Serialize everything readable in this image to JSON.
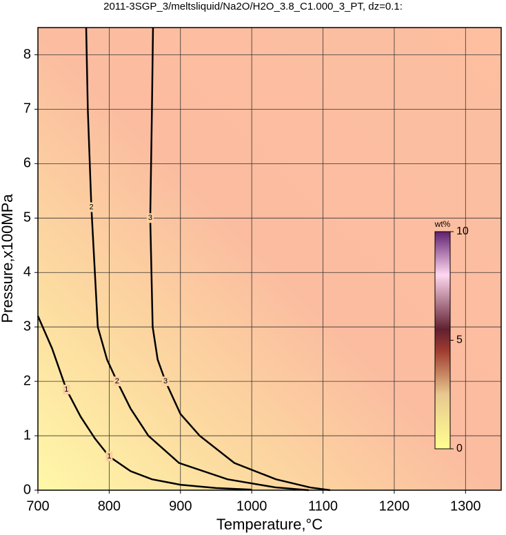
{
  "chart_data": {
    "type": "contour",
    "title": "2011-3SGP_3/meltsliquid/Na2O/H2O_3.8_C1.000_3_PT, dz=0.1:",
    "x_label": "Temperature,°C",
    "y_label": "Pressure,x100MPa",
    "xlim": [
      700,
      1350
    ],
    "ylim": [
      0,
      8.5
    ],
    "xticks": [
      700,
      800,
      900,
      1000,
      1100,
      1200,
      1300
    ],
    "yticks": [
      0,
      1,
      2,
      3,
      4,
      5,
      6,
      7,
      8
    ],
    "grid": true,
    "colorbar": {
      "label": "wt%",
      "lim": [
        0,
        10
      ],
      "ticks": [
        0,
        5,
        10
      ]
    },
    "contours": [
      {
        "level": 1,
        "x": [
          700,
          720,
          740,
          760,
          780,
          800,
          830,
          860,
          900,
          950,
          1000
        ],
        "y": [
          3.2,
          2.6,
          1.85,
          1.35,
          0.95,
          0.62,
          0.35,
          0.2,
          0.1,
          0.04,
          0.01
        ]
      },
      {
        "level": 2,
        "x": [
          767.7,
          770,
          775,
          784,
          797,
          811,
          830,
          855,
          898,
          966,
          1034,
          1080
        ],
        "y": [
          8.5,
          7,
          5.2,
          3,
          2.4,
          2,
          1.5,
          1,
          0.5,
          0.2,
          0.05,
          0
        ]
      },
      {
        "level": 3,
        "x": [
          861.5,
          860,
          857.6,
          861,
          868,
          879,
          900,
          927,
          975.6,
          1034,
          1082,
          1110
        ],
        "y": [
          8.5,
          7,
          5,
          3,
          2.4,
          2,
          1.4,
          1,
          0.5,
          0.2,
          0.05,
          0
        ]
      }
    ]
  }
}
